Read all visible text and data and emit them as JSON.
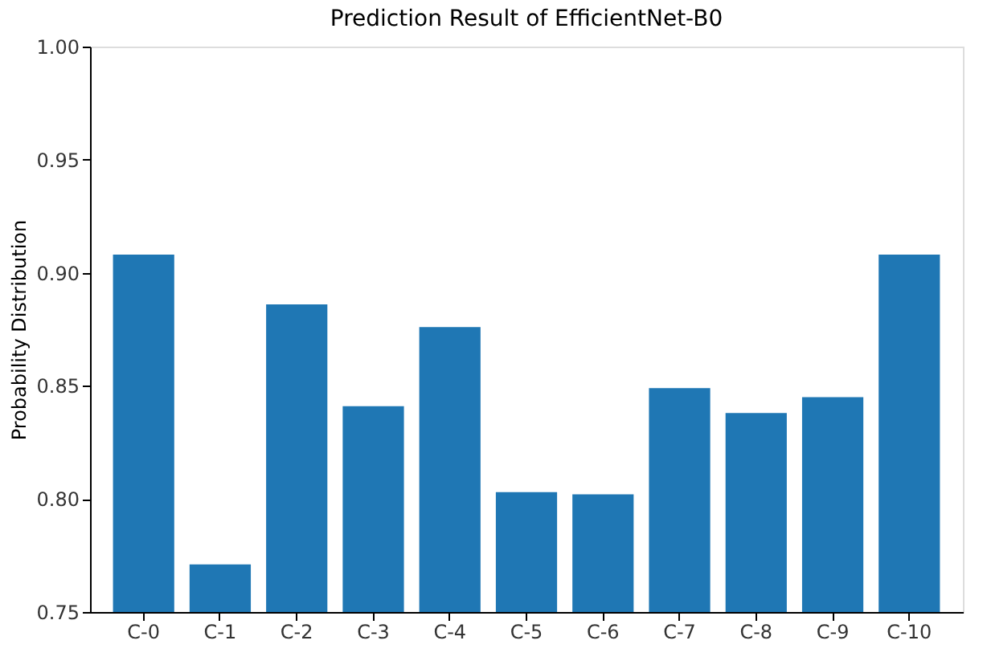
{
  "chart_data": {
    "type": "bar",
    "title": "Prediction Result of EfficientNet-B0",
    "ylabel": "Probability Distribution",
    "categories": [
      "C-0",
      "C-1",
      "C-2",
      "C-3",
      "C-4",
      "C-5",
      "C-6",
      "C-7",
      "C-8",
      "C-9",
      "C-10"
    ],
    "values": [
      0.908,
      0.771,
      0.886,
      0.841,
      0.876,
      0.803,
      0.802,
      0.849,
      0.838,
      0.845,
      0.908
    ],
    "color": "#1f77b4",
    "ylim": [
      0.75,
      1.0
    ],
    "yticks": [
      {
        "value": 0.75,
        "label": "0.75"
      },
      {
        "value": 0.8,
        "label": "0.80"
      },
      {
        "value": 0.85,
        "label": "0.85"
      },
      {
        "value": 0.9,
        "label": "0.90"
      },
      {
        "value": 0.95,
        "label": "0.95"
      },
      {
        "value": 1.0,
        "label": "1.00"
      }
    ],
    "grid": false
  }
}
